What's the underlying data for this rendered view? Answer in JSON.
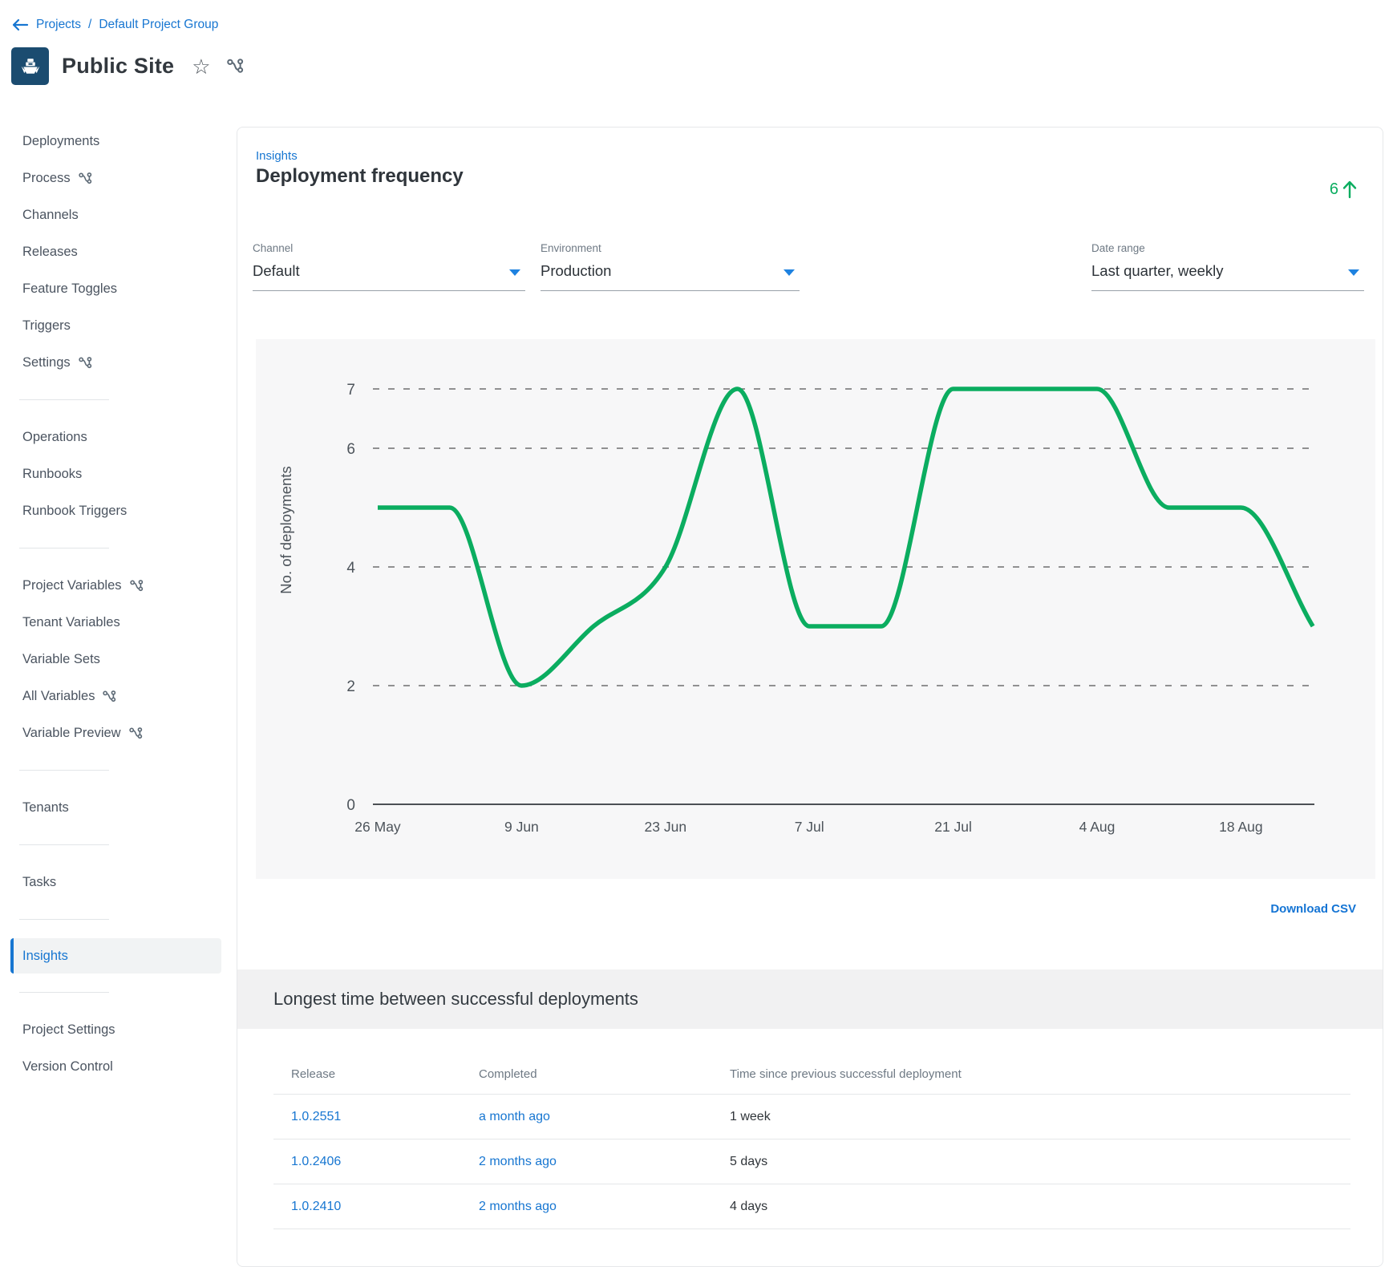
{
  "breadcrumb": {
    "projects": "Projects",
    "separator": "/",
    "group": "Default Project Group"
  },
  "header": {
    "title": "Public Site",
    "favorite_icon": "star-outline",
    "vcs_icon": "branch"
  },
  "sidebar": {
    "groups": [
      {
        "items": [
          {
            "label": "Deployments"
          },
          {
            "label": "Process",
            "branch_icon": true
          },
          {
            "label": "Channels"
          },
          {
            "label": "Releases"
          },
          {
            "label": "Feature Toggles"
          },
          {
            "label": "Triggers"
          },
          {
            "label": "Settings",
            "branch_icon": true
          }
        ]
      },
      {
        "items": [
          {
            "label": "Operations"
          },
          {
            "label": "Runbooks"
          },
          {
            "label": "Runbook Triggers"
          }
        ]
      },
      {
        "items": [
          {
            "label": "Project Variables",
            "branch_icon": true
          },
          {
            "label": "Tenant Variables"
          },
          {
            "label": "Variable Sets"
          },
          {
            "label": "All Variables",
            "branch_icon": true
          },
          {
            "label": "Variable Preview",
            "branch_icon": true
          }
        ]
      },
      {
        "items": [
          {
            "label": "Tenants"
          }
        ]
      },
      {
        "items": [
          {
            "label": "Tasks"
          }
        ]
      },
      {
        "items": [
          {
            "label": "Insights",
            "selected": true
          }
        ]
      },
      {
        "items": [
          {
            "label": "Project Settings"
          },
          {
            "label": "Version Control"
          }
        ]
      }
    ]
  },
  "main": {
    "insights_link": "Insights",
    "page_title": "Deployment frequency",
    "metric": {
      "value": "6",
      "direction": "up"
    },
    "filters": [
      {
        "label": "Channel",
        "value": "Default"
      },
      {
        "label": "Environment",
        "value": "Production"
      },
      {
        "label": "Date range",
        "value": "Last quarter, weekly"
      }
    ],
    "download_csv": "Download CSV",
    "section_title": "Longest time between successful deployments",
    "table": {
      "columns": [
        "Release",
        "Completed",
        "Time since previous successful deployment"
      ],
      "rows": [
        {
          "release": "1.0.2551",
          "completed": "a month ago",
          "time": "1 week"
        },
        {
          "release": "1.0.2406",
          "completed": "2 months ago",
          "time": "5 days"
        },
        {
          "release": "1.0.2410",
          "completed": "2 months ago",
          "time": "4 days"
        }
      ]
    }
  },
  "chart_data": {
    "type": "line",
    "title": "Deployment frequency",
    "xlabel": "",
    "ylabel": "No. of deployments",
    "x": [
      "26 May",
      "2 Jun",
      "9 Jun",
      "16 Jun",
      "23 Jun",
      "30 Jun",
      "7 Jul",
      "14 Jul",
      "21 Jul",
      "28 Jul",
      "4 Aug",
      "11 Aug",
      "18 Aug",
      "25 Aug"
    ],
    "values": [
      5,
      5,
      2,
      3,
      4,
      7,
      3,
      3,
      7,
      7,
      7,
      5,
      5,
      3
    ],
    "x_tick_labels": [
      "26 May",
      "9 Jun",
      "23 Jun",
      "7 Jul",
      "21 Jul",
      "4 Aug",
      "18 Aug"
    ],
    "y_tick_labels": [
      "7",
      "6",
      "4",
      "2",
      "0"
    ],
    "y_gridlines": [
      7,
      6,
      4,
      2
    ],
    "ylim": [
      0,
      7
    ],
    "grid": "dashed-horizontal",
    "legend": "none",
    "line_color": "#0bad60",
    "smoothing": "monotone-cubic"
  },
  "colors": {
    "link_blue": "#1776d1",
    "accent_blue": "#1e82e0",
    "green": "#0bad60",
    "title_text": "#30353a",
    "sidebar_text": "#4b5460",
    "muted_label": "#6e7984",
    "chart_bg": "#f7f7f8",
    "band_bg": "#f1f1f2",
    "divider": "#e2e5e8",
    "project_tile_bg": "#1b4c70"
  }
}
